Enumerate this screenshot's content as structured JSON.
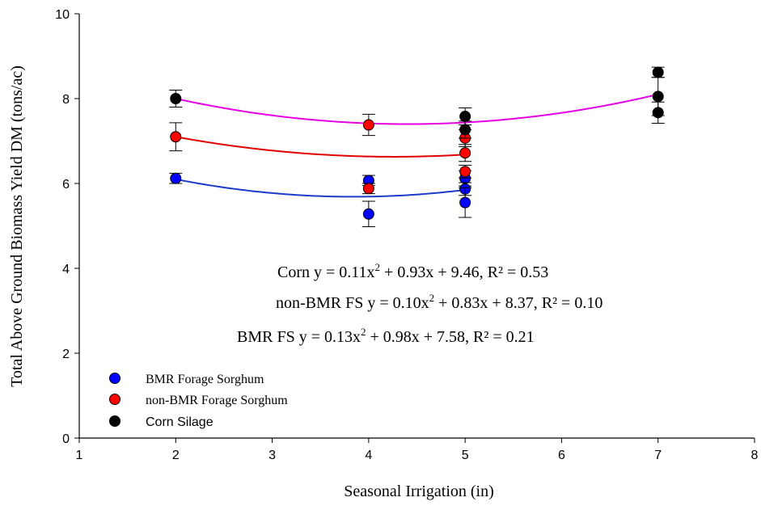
{
  "chart_data": {
    "type": "scatter",
    "xlabel": "Seasonal Irrigation (in)",
    "ylabel": "Total Above Ground Biomass Yield DM (tons/ac)",
    "xlim": [
      1,
      8
    ],
    "ylim": [
      0,
      10
    ],
    "x_ticks": [
      "1",
      "2",
      "3",
      "4",
      "5",
      "6",
      "7",
      "8"
    ],
    "y_ticks": [
      "0",
      "2",
      "4",
      "6",
      "8",
      "10"
    ],
    "grid": false,
    "legend_position": "bottom-left",
    "series": [
      {
        "name": "BMR Forage Sorghum",
        "color": "#0000ff",
        "trend_color": "#1a3cc8",
        "points": [
          {
            "x": 2,
            "y": 6.12,
            "err": 0.12
          },
          {
            "x": 4,
            "y": 6.07,
            "err": 0.12
          },
          {
            "x": 4,
            "y": 5.28,
            "err": 0.3
          },
          {
            "x": 5,
            "y": 6.12,
            "err": 0.18
          },
          {
            "x": 5,
            "y": 5.87,
            "err": 0.15
          },
          {
            "x": 5,
            "y": 5.55,
            "err": 0.35
          }
        ],
        "trend": {
          "x": [
            2,
            4,
            5
          ],
          "y": [
            6.1,
            5.69,
            5.85
          ]
        }
      },
      {
        "name": "non-BMR Forage Sorghum",
        "color": "#ff0000",
        "trend_color": "#e00000",
        "points": [
          {
            "x": 2,
            "y": 7.1,
            "err": 0.33
          },
          {
            "x": 4,
            "y": 7.38,
            "err": 0.25
          },
          {
            "x": 4,
            "y": 5.88,
            "err": 0.12
          },
          {
            "x": 5,
            "y": 7.07,
            "err": 0.2
          },
          {
            "x": 5,
            "y": 6.72,
            "err": 0.2
          },
          {
            "x": 5,
            "y": 6.28,
            "err": 0.15
          }
        ],
        "trend": {
          "x": [
            2,
            4.2,
            5
          ],
          "y": [
            7.1,
            6.63,
            6.68
          ]
        }
      },
      {
        "name": "Corn Silage",
        "color": "#000000",
        "trend_color": "#e600e6",
        "points": [
          {
            "x": 2,
            "y": 8.0,
            "err": 0.2
          },
          {
            "x": 5,
            "y": 7.58,
            "err": 0.2
          },
          {
            "x": 5,
            "y": 7.27,
            "err": 0.2
          },
          {
            "x": 7,
            "y": 8.62,
            "err": 0.12
          },
          {
            "x": 7,
            "y": 8.05,
            "err": 0.45
          },
          {
            "x": 7,
            "y": 7.67,
            "err": 0.25
          }
        ],
        "trend": {
          "x": [
            2,
            4.4,
            7
          ],
          "y": [
            8.0,
            7.4,
            8.1
          ]
        }
      }
    ],
    "equations": [
      {
        "label": "Corn",
        "text_a": "Corn y = 0.11x",
        "sup": "2",
        "text_b": " + 0.93x + 9.46, R² = 0.53"
      },
      {
        "label": "non-BMR FS",
        "text_a": "non-BMR FS y = 0.10x",
        "sup": "2",
        "text_b": " + 0.83x + 8.37, R² = 0.10"
      },
      {
        "label": "BMR FS",
        "text_a": "BMR FS y = 0.13x",
        "sup": "2",
        "text_b": " + 0.98x + 7.58, R² = 0.21"
      }
    ]
  }
}
